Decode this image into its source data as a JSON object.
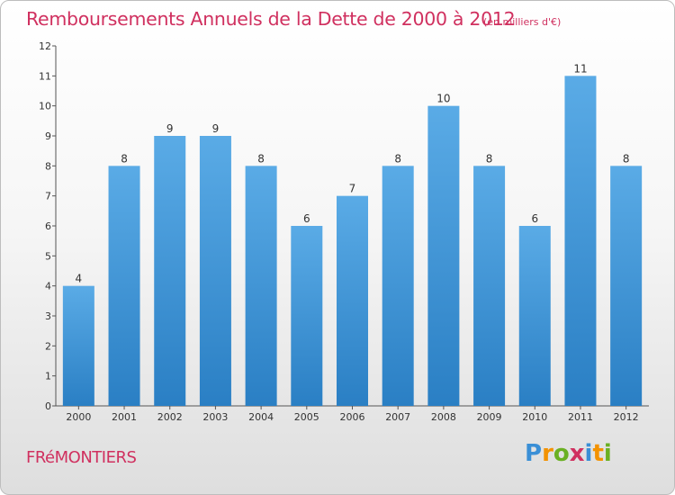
{
  "header": {
    "title": "Remboursements Annuels de la Dette de 2000 à 2012",
    "subtitle": "(en milliers d'€)"
  },
  "footer": {
    "commune": "FRéMONTIERS",
    "brand_letters": [
      {
        "ch": "P",
        "color": "#3a8fd6"
      },
      {
        "ch": "r",
        "color": "#f39200"
      },
      {
        "ch": "o",
        "color": "#6ab023"
      },
      {
        "ch": "x",
        "color": "#d0305f"
      },
      {
        "ch": "i",
        "color": "#3a8fd6"
      },
      {
        "ch": "t",
        "color": "#f39200"
      },
      {
        "ch": "i",
        "color": "#6ab023"
      }
    ]
  },
  "colors": {
    "accent": "#d0305f",
    "bar_top": "#5aabe6",
    "bar_bottom": "#2a7fc4",
    "axis": "#555555",
    "label": "#333333"
  },
  "chart_data": {
    "type": "bar",
    "categories": [
      "2000",
      "2001",
      "2002",
      "2003",
      "2004",
      "2005",
      "2006",
      "2007",
      "2008",
      "2009",
      "2010",
      "2011",
      "2012"
    ],
    "values": [
      4,
      8,
      9,
      9,
      8,
      6,
      7,
      8,
      10,
      8,
      6,
      11,
      8
    ],
    "data_labels": [
      "4",
      "8",
      "9",
      "9",
      "8",
      "6",
      "7",
      "8",
      "10",
      "8",
      "6",
      "11",
      "8"
    ],
    "title": "Remboursements Annuels de la Dette de 2000 à 2012",
    "xlabel": "",
    "ylabel": "",
    "ylim": [
      0,
      12
    ],
    "yticks": [
      0,
      1,
      2,
      3,
      4,
      5,
      6,
      7,
      8,
      9,
      10,
      11,
      12
    ],
    "grid": false
  }
}
